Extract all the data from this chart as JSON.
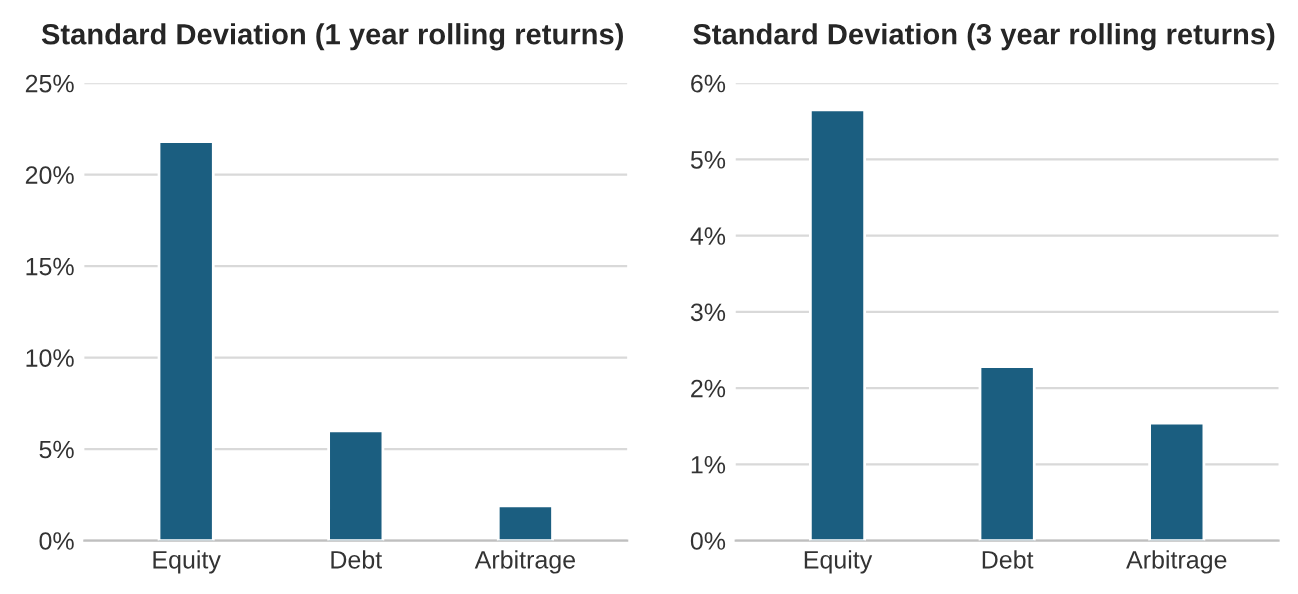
{
  "chart_data": [
    {
      "type": "bar",
      "title": "Standard Deviation (1 year rolling returns)",
      "categories": [
        "Equity",
        "Debt",
        "Arbitrage"
      ],
      "values": [
        21.8,
        6.0,
        1.9
      ],
      "color": "#1b5e80",
      "ylim": [
        0,
        25
      ],
      "yticks": [
        {
          "value": 0,
          "label": "0%"
        },
        {
          "value": 5,
          "label": "5%"
        },
        {
          "value": 10,
          "label": "10%"
        },
        {
          "value": 15,
          "label": "15%"
        },
        {
          "value": 20,
          "label": "20%"
        },
        {
          "value": 25,
          "label": "25%"
        }
      ],
      "grid": "y"
    },
    {
      "type": "bar",
      "title": "Standard Deviation (3 year rolling returns)",
      "categories": [
        "Equity",
        "Debt",
        "Arbitrage"
      ],
      "values": [
        5.65,
        2.28,
        1.54
      ],
      "color": "#1b5e80",
      "ylim": [
        0,
        6
      ],
      "yticks": [
        {
          "value": 0,
          "label": "0%"
        },
        {
          "value": 1,
          "label": "1%"
        },
        {
          "value": 2,
          "label": "2%"
        },
        {
          "value": 3,
          "label": "3%"
        },
        {
          "value": 4,
          "label": "4%"
        },
        {
          "value": 5,
          "label": "5%"
        },
        {
          "value": 6,
          "label": "6%"
        }
      ],
      "grid": "y"
    }
  ]
}
